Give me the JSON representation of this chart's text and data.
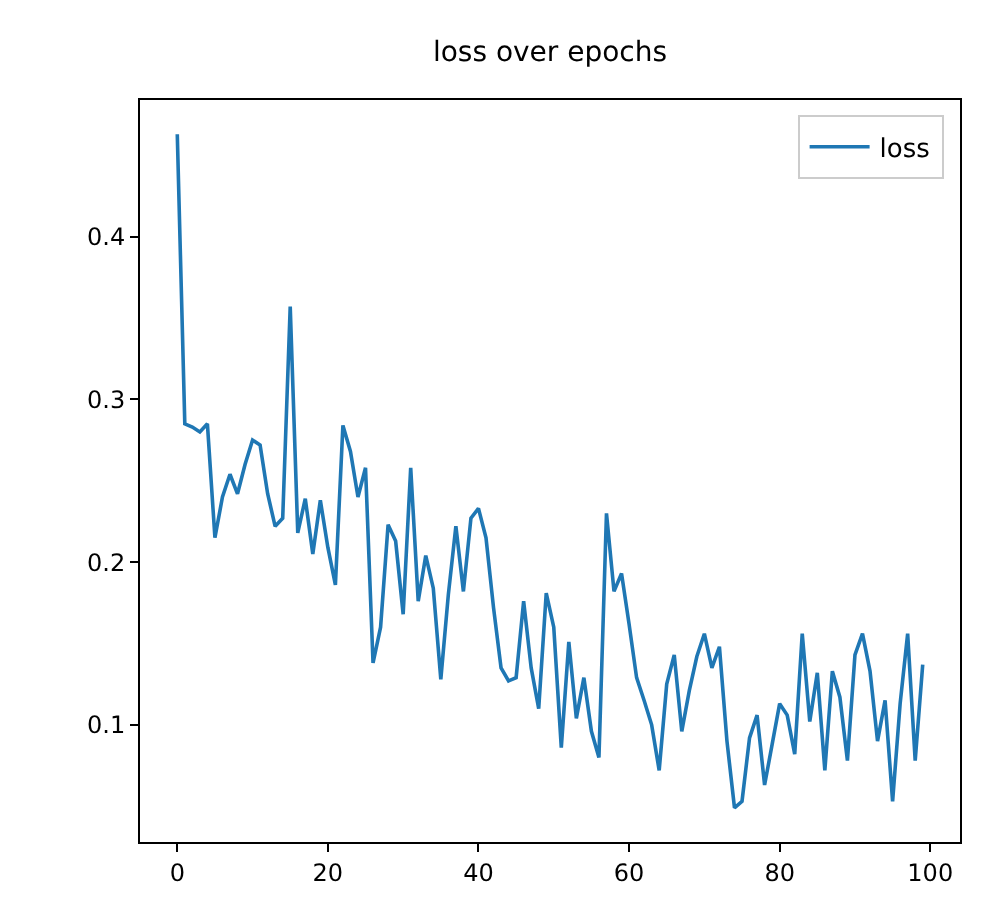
{
  "chart_data": {
    "type": "line",
    "title": "loss over epochs",
    "x": [
      0,
      1,
      2,
      3,
      4,
      5,
      6,
      7,
      8,
      9,
      10,
      11,
      12,
      13,
      14,
      15,
      16,
      17,
      18,
      19,
      20,
      21,
      22,
      23,
      24,
      25,
      26,
      27,
      28,
      29,
      30,
      31,
      32,
      33,
      34,
      35,
      36,
      37,
      38,
      39,
      40,
      41,
      42,
      43,
      44,
      45,
      46,
      47,
      48,
      49,
      50,
      51,
      52,
      53,
      54,
      55,
      56,
      57,
      58,
      59,
      60,
      61,
      62,
      63,
      64,
      65,
      66,
      67,
      68,
      69,
      70,
      71,
      72,
      73,
      74,
      75,
      76,
      77,
      78,
      79,
      80,
      81,
      82,
      83,
      84,
      85,
      86,
      87,
      88,
      89,
      90,
      91,
      92,
      93,
      94,
      95,
      96,
      97,
      98,
      99
    ],
    "series": [
      {
        "name": "loss",
        "color": "#1f77b4",
        "values": [
          0.463,
          0.285,
          0.283,
          0.28,
          0.285,
          0.215,
          0.24,
          0.254,
          0.242,
          0.26,
          0.275,
          0.272,
          0.242,
          0.222,
          0.227,
          0.357,
          0.218,
          0.239,
          0.205,
          0.238,
          0.209,
          0.186,
          0.284,
          0.268,
          0.24,
          0.258,
          0.138,
          0.16,
          0.223,
          0.213,
          0.168,
          0.258,
          0.176,
          0.204,
          0.184,
          0.128,
          0.18,
          0.222,
          0.182,
          0.227,
          0.233,
          0.215,
          0.172,
          0.135,
          0.127,
          0.129,
          0.176,
          0.135,
          0.11,
          0.181,
          0.16,
          0.086,
          0.151,
          0.104,
          0.129,
          0.096,
          0.08,
          0.23,
          0.182,
          0.193,
          0.162,
          0.129,
          0.115,
          0.1,
          0.072,
          0.125,
          0.143,
          0.096,
          0.121,
          0.142,
          0.156,
          0.135,
          0.148,
          0.09,
          0.049,
          0.053,
          0.092,
          0.106,
          0.063,
          0.088,
          0.113,
          0.106,
          0.082,
          0.156,
          0.102,
          0.132,
          0.072,
          0.133,
          0.117,
          0.078,
          0.143,
          0.156,
          0.133,
          0.09,
          0.115,
          0.053,
          0.113,
          0.156,
          0.078,
          0.137
        ]
      }
    ],
    "xlim": [
      -4.95,
      103.95
    ],
    "ylim": [
      0.028,
      0.484
    ],
    "xticks": [
      0,
      20,
      40,
      60,
      80,
      100
    ],
    "yticks": [
      0.1,
      0.2,
      0.3,
      0.4
    ],
    "grid": false,
    "legend": "top right",
    "marker": "none",
    "line_style": "solid"
  }
}
